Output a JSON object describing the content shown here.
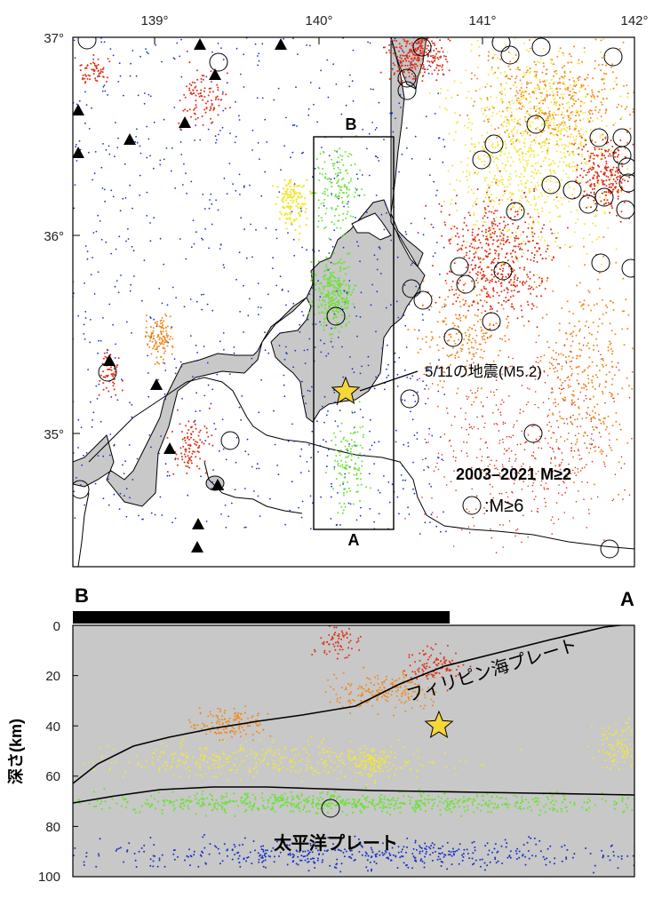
{
  "map": {
    "lon_ticks": [
      "139°",
      "140°",
      "141°",
      "142°"
    ],
    "lat_ticks": [
      "37°",
      "36°",
      "35°"
    ],
    "section_end_top": "B",
    "section_end_bottom": "A",
    "event_label": "5/11の地震(M5.2)",
    "catalog_label": "2003–2021 M≥2",
    "big_eq_legend": ":M≥6",
    "colors": {
      "land": "#c8c8c8",
      "sea": "#ffffff",
      "star": "#f7d63a",
      "shallow": "#e03018",
      "mid": "#f08a20",
      "yellow": "#f2e63a",
      "green": "#6ee23a",
      "deep": "#1a33c8"
    }
  },
  "section": {
    "left_label": "B",
    "right_label": "A",
    "ylabel": "深さ(km)",
    "depth_ticks": [
      "0",
      "20",
      "40",
      "60",
      "80",
      "100"
    ],
    "plate_upper": "フィリピン海プレート",
    "plate_lower": "太平洋プレート"
  }
}
